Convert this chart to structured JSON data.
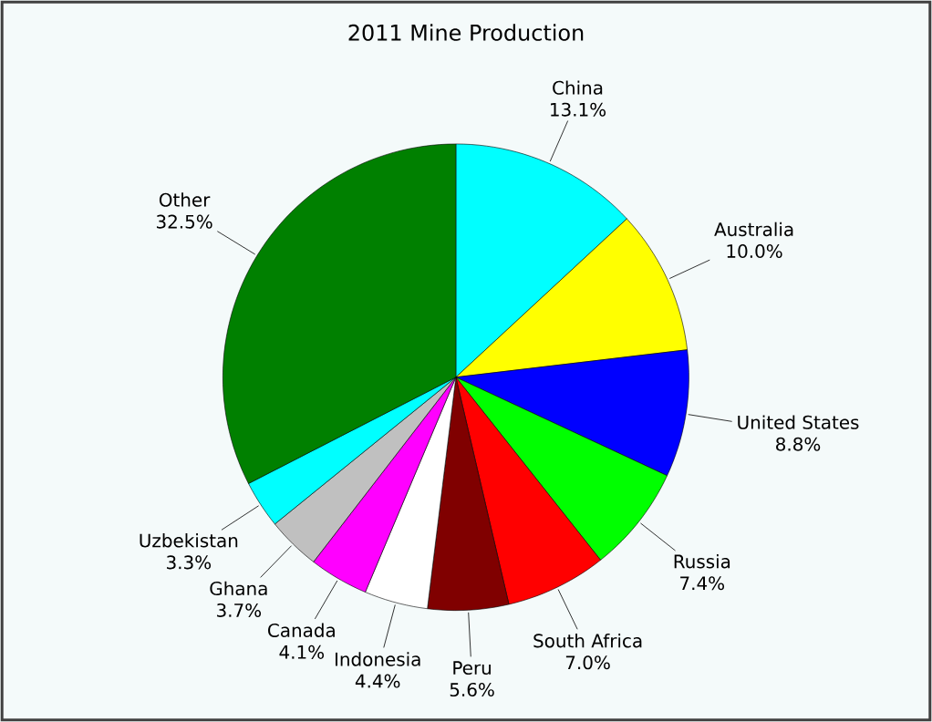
{
  "chart_data": {
    "type": "pie",
    "title": "2011 Mine Production",
    "categories": [
      "China",
      "Australia",
      "United States",
      "Russia",
      "South Africa",
      "Peru",
      "Indonesia",
      "Canada",
      "Ghana",
      "Uzbekistan",
      "Other"
    ],
    "values": [
      13.1,
      10.0,
      8.8,
      7.4,
      7.0,
      5.6,
      4.4,
      4.1,
      3.7,
      3.3,
      32.5
    ],
    "value_labels": [
      "13.1%",
      "10.0%",
      "8.8%",
      "7.4%",
      "7.0%",
      "5.6%",
      "4.4%",
      "4.1%",
      "3.7%",
      "3.3%",
      "32.5%"
    ],
    "colors": [
      "#00ffff",
      "#ffff00",
      "#0000ff",
      "#00ff00",
      "#ff0000",
      "#800000",
      "#ffffff",
      "#ff00ff",
      "#c0c0c0",
      "#00ffff",
      "#008000"
    ]
  }
}
